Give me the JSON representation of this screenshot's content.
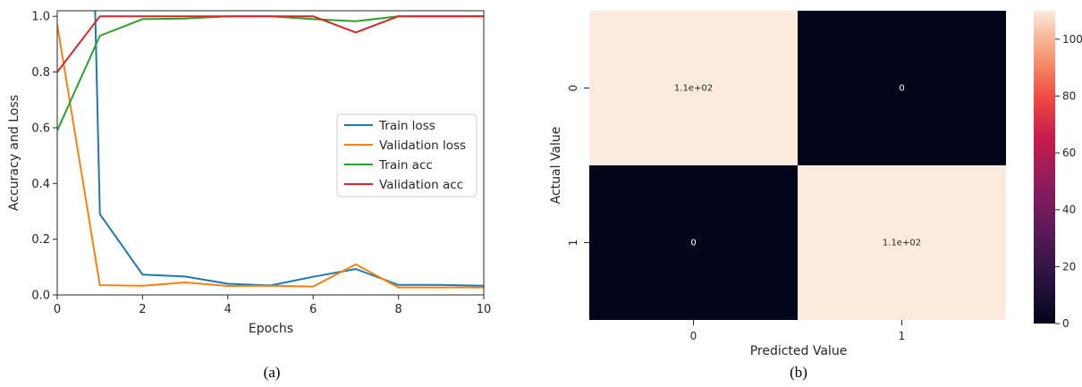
{
  "chart_data": [
    {
      "type": "line",
      "panel_label": "(a)",
      "xlabel": "Epochs",
      "ylabel": "Accuracy and Loss",
      "xlim": [
        0,
        10
      ],
      "ylim": [
        0,
        1.02
      ],
      "xticks": [
        "0",
        "2",
        "4",
        "6",
        "8",
        "10"
      ],
      "yticks": [
        "0.0",
        "0.2",
        "0.4",
        "0.6",
        "0.8",
        "1.0"
      ],
      "grid": false,
      "legend_position": "center-right",
      "x": [
        0,
        1,
        2,
        3,
        4,
        5,
        6,
        7,
        8,
        9,
        10
      ],
      "series": [
        {
          "name": "Train loss",
          "color": "#1f77b4",
          "x": [
            0.88,
            1,
            2,
            3,
            4,
            5,
            6,
            7,
            8,
            9,
            10
          ],
          "values": [
            1.08,
            0.29,
            0.073,
            0.066,
            0.04,
            0.034,
            0.065,
            0.093,
            0.036,
            0.036,
            0.033
          ]
        },
        {
          "name": "Validation loss",
          "color": "#ff7f0e",
          "values": [
            0.97,
            0.035,
            0.033,
            0.045,
            0.032,
            0.033,
            0.03,
            0.11,
            0.027,
            0.027,
            0.027
          ]
        },
        {
          "name": "Train acc",
          "color": "#2ca02c",
          "values": [
            0.59,
            0.93,
            0.99,
            0.992,
            1.0,
            1.0,
            0.99,
            0.982,
            1.0,
            1.0,
            1.0
          ]
        },
        {
          "name": "Validation acc",
          "color": "#d62728",
          "values": [
            0.8,
            1.0,
            1.0,
            1.0,
            1.0,
            1.0,
            1.0,
            0.942,
            1.0,
            1.0,
            1.0
          ]
        }
      ]
    },
    {
      "type": "heatmap",
      "panel_label": "(b)",
      "xlabel": "Predicted Value",
      "ylabel": "Actual Value",
      "x_categories": [
        "0",
        "1"
      ],
      "y_categories": [
        "0",
        "1"
      ],
      "values": [
        [
          110,
          0
        ],
        [
          0,
          110
        ]
      ],
      "annotations": [
        [
          "1.1e+02",
          "0"
        ],
        [
          "0",
          "1.1e+02"
        ]
      ],
      "colorbar": {
        "range": [
          0,
          110
        ],
        "ticks": [
          "0",
          "20",
          "40",
          "60",
          "80",
          "100"
        ],
        "colormap": "rocket"
      }
    }
  ]
}
